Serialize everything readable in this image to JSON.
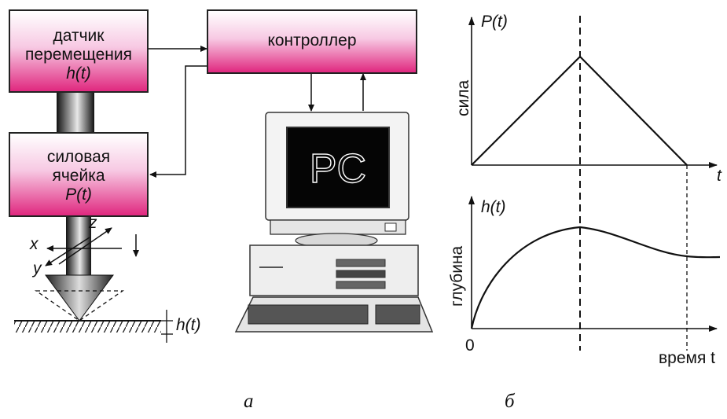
{
  "diagram_a": {
    "sensor_box": {
      "line1": "датчик",
      "line2": "перемещения",
      "line3": "h(t)"
    },
    "force_box": {
      "line1": "силовая",
      "line2": "ячейка",
      "line3": "P(t)"
    },
    "controller_box": {
      "label": "контроллер"
    },
    "pc": {
      "screen_label": "PC"
    },
    "axes": {
      "x": "x",
      "y": "y",
      "z": "z"
    },
    "depth_label": "h(t)",
    "caption": "а"
  },
  "diagram_b": {
    "top_plot": {
      "y_title": "P(t)",
      "y_axis_label": "сила",
      "x_axis_label": "t"
    },
    "bottom_plot": {
      "y_title": "h(t)",
      "y_axis_label": "глубина",
      "x_axis_label": "время t",
      "origin_label": "0"
    },
    "caption": "б"
  },
  "colors": {
    "box_pink": "#e0287f",
    "line": "#111111"
  }
}
